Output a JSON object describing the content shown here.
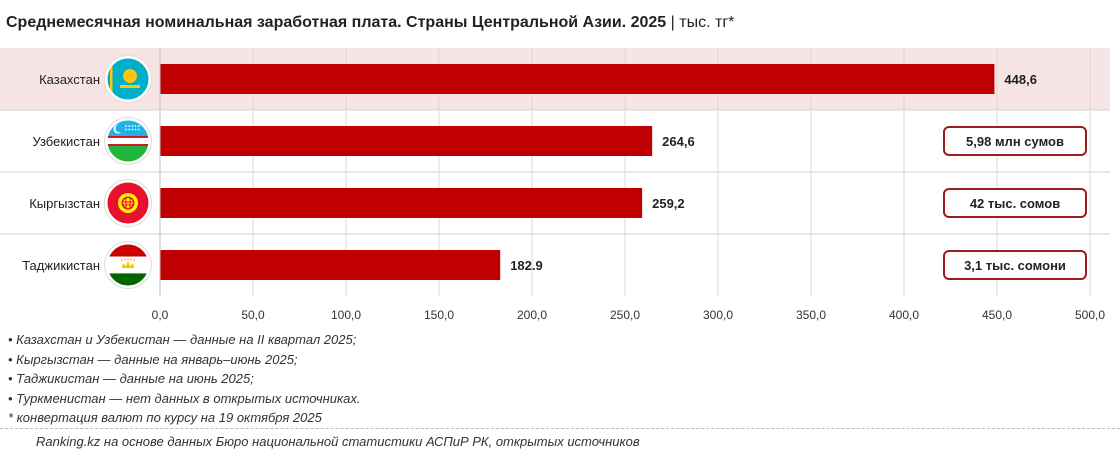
{
  "title": {
    "main": "Среднемесячная номинальная заработная плата. Страны Центральной Азии. 2025",
    "separator": "|",
    "unit": "тыс. тг*"
  },
  "chart_data": {
    "type": "bar",
    "orientation": "horizontal",
    "categories": [
      "Казахстан",
      "Узбекистан",
      "Кыргызстан",
      "Таджикистан"
    ],
    "values": [
      448.6,
      264.6,
      259.2,
      182.9
    ],
    "value_labels": [
      "448,6",
      "264,6",
      "259,2",
      "182.9"
    ],
    "local_currency_labels": [
      "",
      "5,98 млн сумов",
      "42 тыс. сомов",
      "3,1 тыс. сомони"
    ],
    "highlighted_category": "Казахстан",
    "xlim": [
      0,
      500
    ],
    "xticks": [
      0,
      50,
      100,
      150,
      200,
      250,
      300,
      350,
      400,
      450,
      500
    ],
    "xtick_labels": [
      "0,0",
      "50,0",
      "100,0",
      "150,0",
      "200,0",
      "250,0",
      "300,0",
      "350,0",
      "400,0",
      "450,0",
      "500,0"
    ],
    "grid": true,
    "bar_color": "#c00000",
    "highlight_color": "#f7e4e4",
    "flags": [
      "kazakhstan-flag-icon",
      "uzbekistan-flag-icon",
      "kyrgyzstan-flag-icon",
      "tajikistan-flag-icon"
    ]
  },
  "notes": [
    "• Казахстан и Узбекистан — данные на II квартал 2025;",
    "• Кыргызстан — данные на январь–июнь 2025;",
    "• Таджикистан — данные на июнь 2025;",
    "• Туркменистан — нет данных в открытых источниках.",
    "* конвертация валют по курсу на 19 октября 2025"
  ],
  "source": "Ranking.kz на основе данных Бюро национальной статистики АСПиР РК, открытых источников"
}
